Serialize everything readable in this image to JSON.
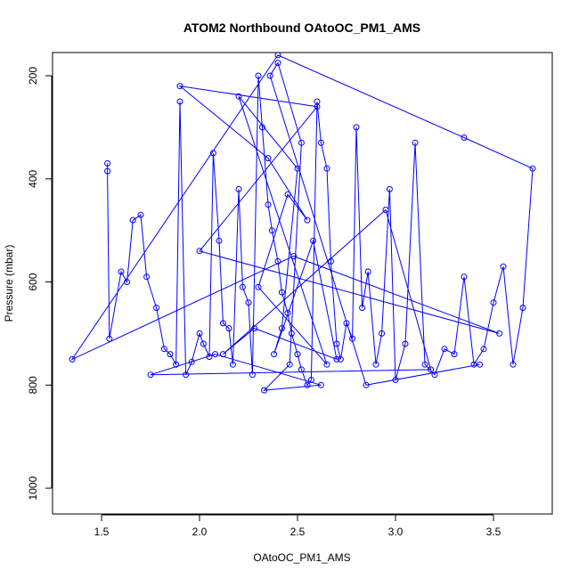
{
  "chart_data": {
    "type": "line",
    "title": "ATOM2 Northbound OAtoOC_PM1_AMS",
    "xlabel": "OAtoOC_PM1_AMS",
    "ylabel": "Pressure (mbar)",
    "xlim": [
      1.25,
      3.8
    ],
    "ylim": [
      1050,
      155
    ],
    "y_axis_inverted": true,
    "x_ticks": [
      1.5,
      2.0,
      2.5,
      3.0,
      3.5
    ],
    "x_tick_labels": [
      "1.5",
      "2.0",
      "2.5",
      "3.0",
      "3.5"
    ],
    "y_ticks": [
      200,
      400,
      600,
      800,
      1000
    ],
    "y_tick_labels": [
      "200",
      "400",
      "600",
      "800",
      "1000"
    ],
    "grid": false,
    "legend": "none",
    "marker": "open-circle",
    "series_color": "#0000ff",
    "series": [
      {
        "x": [
          1.53,
          1.53,
          1.54,
          1.6,
          1.63,
          1.66,
          1.7,
          1.73,
          1.78,
          1.82,
          1.85,
          1.88,
          1.9,
          1.93,
          1.96,
          2.0,
          2.02,
          2.05,
          2.07,
          2.1,
          2.12,
          2.15,
          2.17,
          2.2,
          2.22,
          2.25,
          2.27,
          2.3,
          2.32,
          2.35,
          2.37,
          2.4,
          2.42,
          2.45,
          2.47,
          2.5,
          2.52,
          2.55,
          2.57,
          2.6,
          2.62,
          2.65,
          2.67,
          2.7,
          2.72,
          2.75,
          2.78,
          2.8,
          2.83,
          2.86,
          2.9,
          2.93,
          2.97,
          3.0,
          3.05,
          3.1,
          3.15,
          3.2,
          3.25,
          3.3,
          3.35,
          3.4,
          3.45,
          3.5,
          3.55,
          3.6,
          3.65,
          3.7,
          3.35,
          2.4,
          1.35,
          2.48,
          3.53,
          2.0,
          2.6,
          1.9,
          2.35,
          2.55,
          2.45,
          2.3,
          2.65,
          2.2,
          2.5,
          2.42,
          2.38,
          2.58,
          2.7,
          2.28,
          2.12,
          2.95,
          3.18,
          1.75,
          2.08,
          2.62,
          2.33,
          2.46,
          2.52,
          2.4,
          2.36,
          2.85,
          3.43
        ],
        "y": [
          370,
          385,
          710,
          580,
          600,
          480,
          470,
          590,
          650,
          730,
          740,
          760,
          250,
          780,
          755,
          700,
          720,
          745,
          350,
          520,
          680,
          690,
          760,
          420,
          610,
          640,
          780,
          200,
          300,
          450,
          500,
          560,
          620,
          660,
          700,
          740,
          770,
          800,
          790,
          250,
          330,
          380,
          560,
          720,
          750,
          680,
          710,
          300,
          650,
          580,
          760,
          700,
          420,
          790,
          720,
          330,
          760,
          780,
          730,
          740,
          590,
          760,
          730,
          640,
          570,
          760,
          650,
          380,
          320,
          160,
          750,
          550,
          700,
          540,
          260,
          220,
          360,
          480,
          430,
          610,
          760,
          240,
          380,
          690,
          740,
          520,
          750,
          690,
          740,
          460,
          770,
          780,
          740,
          800,
          810,
          760,
          330,
          175,
          200,
          800,
          760
        ]
      }
    ]
  }
}
